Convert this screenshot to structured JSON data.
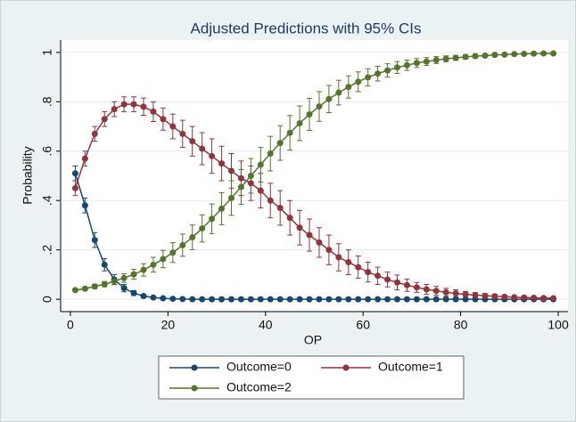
{
  "chart_data": {
    "type": "line",
    "title": "Adjusted Predictions with 95% CIs",
    "x_label": "OP",
    "y_label": "Probability",
    "xlim": [
      -2,
      102
    ],
    "xticks": [
      0,
      20,
      40,
      60,
      80,
      100
    ],
    "ylim": [
      -0.05,
      1.05
    ],
    "yticks": [
      0,
      {
        "value": 0.2,
        "label": ".2"
      },
      {
        "value": 0.4,
        "label": ".4"
      },
      {
        "value": 0.6,
        "label": ".6"
      },
      {
        "value": 0.8,
        "label": ".8"
      },
      1
    ],
    "grid": true,
    "x": [
      1,
      3,
      5,
      7,
      9,
      11,
      13,
      15,
      17,
      19,
      21,
      23,
      25,
      27,
      29,
      31,
      33,
      35,
      37,
      39,
      41,
      43,
      45,
      47,
      49,
      51,
      53,
      55,
      57,
      59,
      61,
      63,
      65,
      67,
      69,
      71,
      73,
      75,
      77,
      79,
      81,
      83,
      85,
      87,
      89,
      91,
      93,
      95,
      97,
      99
    ],
    "series": [
      {
        "name": "Outcome=0",
        "color": "#1a476f",
        "values": [
          0.51,
          0.38,
          0.24,
          0.14,
          0.08,
          0.045,
          0.025,
          0.013,
          0.007,
          0.004,
          0.002,
          0.001,
          0,
          0,
          0,
          0,
          0,
          0,
          0,
          0,
          0,
          0,
          0,
          0,
          0,
          0,
          0,
          0,
          0,
          0,
          0,
          0,
          0,
          0,
          0,
          0,
          0,
          0,
          0,
          0,
          0,
          0,
          0,
          0,
          0,
          0,
          0,
          0,
          0,
          0
        ],
        "errors": [
          0.03,
          0.03,
          0.03,
          0.025,
          0.02,
          0.015,
          0.01,
          0.007,
          0.005,
          0.003,
          0.002,
          0.001,
          0,
          0,
          0,
          0,
          0,
          0,
          0,
          0,
          0,
          0,
          0,
          0,
          0,
          0,
          0,
          0,
          0,
          0,
          0,
          0,
          0,
          0,
          0,
          0,
          0,
          0,
          0,
          0,
          0,
          0,
          0,
          0,
          0,
          0,
          0,
          0,
          0,
          0
        ]
      },
      {
        "name": "Outcome=1",
        "color": "#90353b",
        "values": [
          0.45,
          0.57,
          0.67,
          0.73,
          0.77,
          0.79,
          0.79,
          0.78,
          0.76,
          0.73,
          0.7,
          0.67,
          0.64,
          0.61,
          0.58,
          0.55,
          0.52,
          0.49,
          0.47,
          0.44,
          0.4,
          0.37,
          0.33,
          0.29,
          0.26,
          0.23,
          0.2,
          0.17,
          0.15,
          0.13,
          0.11,
          0.095,
          0.08,
          0.068,
          0.057,
          0.048,
          0.04,
          0.034,
          0.028,
          0.024,
          0.02,
          0.017,
          0.014,
          0.012,
          0.01,
          0.008,
          0.007,
          0.006,
          0.005,
          0.004
        ],
        "errors": [
          0.03,
          0.03,
          0.03,
          0.03,
          0.03,
          0.03,
          0.03,
          0.035,
          0.04,
          0.045,
          0.05,
          0.055,
          0.06,
          0.065,
          0.07,
          0.07,
          0.07,
          0.07,
          0.07,
          0.07,
          0.07,
          0.07,
          0.07,
          0.07,
          0.065,
          0.06,
          0.06,
          0.055,
          0.05,
          0.045,
          0.04,
          0.035,
          0.03,
          0.03,
          0.025,
          0.02,
          0.02,
          0.018,
          0.016,
          0.014,
          0.012,
          0.01,
          0.009,
          0.008,
          0.007,
          0.006,
          0.005,
          0.005,
          0.004,
          0.004
        ]
      },
      {
        "name": "Outcome=2",
        "color": "#55752f",
        "values": [
          0.037,
          0.043,
          0.052,
          0.061,
          0.073,
          0.086,
          0.101,
          0.119,
          0.14,
          0.163,
          0.189,
          0.219,
          0.251,
          0.287,
          0.326,
          0.367,
          0.41,
          0.455,
          0.5,
          0.545,
          0.59,
          0.633,
          0.674,
          0.713,
          0.749,
          0.781,
          0.811,
          0.837,
          0.86,
          0.881,
          0.899,
          0.914,
          0.927,
          0.939,
          0.948,
          0.957,
          0.963,
          0.969,
          0.974,
          0.978,
          0.982,
          0.985,
          0.987,
          0.99,
          0.991,
          0.993,
          0.994,
          0.995,
          0.996,
          0.996
        ],
        "errors": [
          0.005,
          0.007,
          0.009,
          0.011,
          0.014,
          0.017,
          0.02,
          0.025,
          0.03,
          0.035,
          0.04,
          0.045,
          0.05,
          0.055,
          0.06,
          0.065,
          0.07,
          0.07,
          0.07,
          0.07,
          0.07,
          0.07,
          0.07,
          0.07,
          0.065,
          0.06,
          0.055,
          0.05,
          0.045,
          0.04,
          0.035,
          0.03,
          0.027,
          0.024,
          0.021,
          0.018,
          0.016,
          0.014,
          0.012,
          0.01,
          0.009,
          0.008,
          0.007,
          0.006,
          0.005,
          0.005,
          0.004,
          0.004,
          0.003,
          0.003
        ]
      }
    ]
  }
}
